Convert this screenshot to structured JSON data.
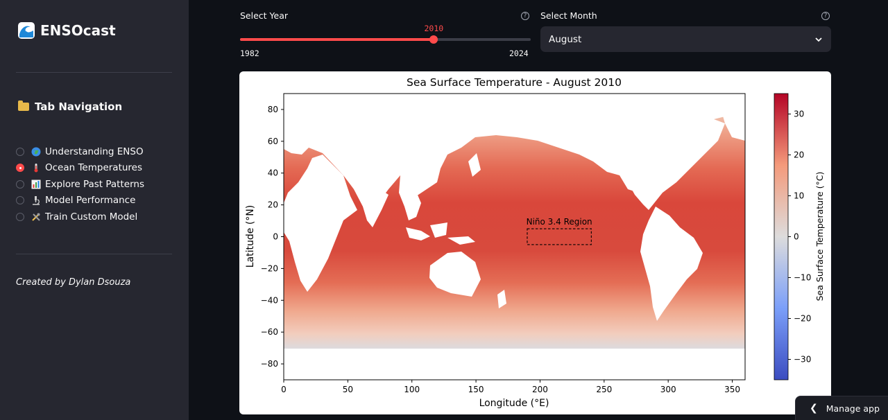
{
  "app": {
    "title": "ENSOcast"
  },
  "sidebar": {
    "nav_title": "Tab Navigation",
    "items": [
      {
        "label": "Understanding ENSO",
        "icon": "globe-icon",
        "selected": false
      },
      {
        "label": "Ocean Temperatures",
        "icon": "thermometer-icon",
        "selected": true
      },
      {
        "label": "Explore Past Patterns",
        "icon": "bar-chart-icon",
        "selected": false
      },
      {
        "label": "Model Performance",
        "icon": "microscope-icon",
        "selected": false
      },
      {
        "label": "Train Custom Model",
        "icon": "tools-icon",
        "selected": false
      }
    ],
    "credit": "Created by Dylan Dsouza"
  },
  "controls": {
    "year_label": "Select Year",
    "year_value": "2010",
    "year_min": "1982",
    "year_max": "2024",
    "month_label": "Select Month",
    "month_value": "August"
  },
  "chart_data": {
    "type": "heatmap",
    "title": "Sea Surface Temperature - August 2010",
    "xlabel": "Longitude (°E)",
    "ylabel": "Latitude (°N)",
    "xlim": [
      0,
      360
    ],
    "ylim": [
      -90,
      90
    ],
    "xticks": [
      "0",
      "50",
      "100",
      "150",
      "200",
      "250",
      "300",
      "350"
    ],
    "yticks": [
      "80",
      "60",
      "40",
      "20",
      "0",
      "−20",
      "−40",
      "−60",
      "−80"
    ],
    "colorbar": {
      "label": "Sea Surface Temperature (°C)",
      "ticks": [
        "30",
        "20",
        "10",
        "0",
        "−10",
        "−20",
        "−30"
      ],
      "range": [
        -35,
        35
      ],
      "colormap": "coolwarm"
    },
    "annotation": {
      "label": "Niño 3.4 Region",
      "lon_range": [
        190,
        240
      ],
      "lat_range": [
        -5,
        5
      ]
    }
  },
  "footer": {
    "manage_label": "Manage app"
  },
  "colors": {
    "accent": "#ff4b4b",
    "sidebar_bg": "#262730",
    "main_bg": "#0e1117"
  }
}
